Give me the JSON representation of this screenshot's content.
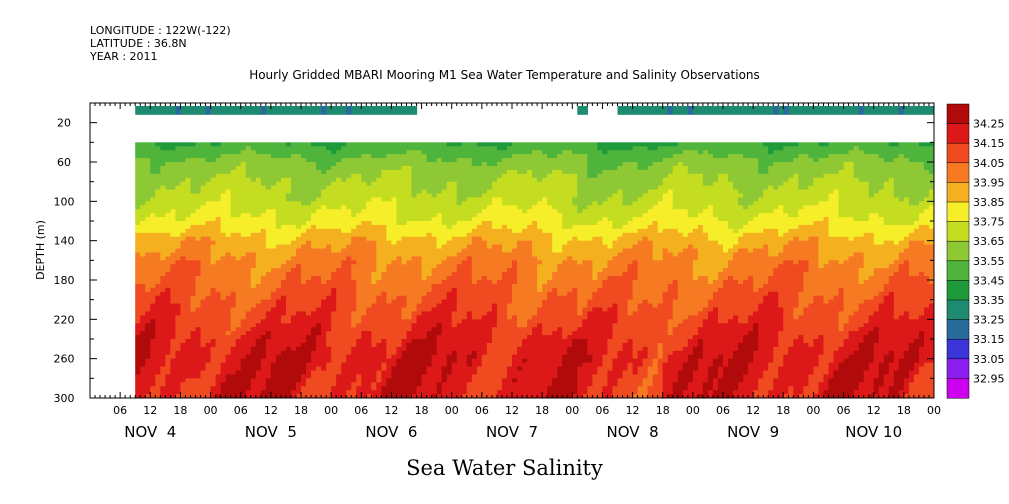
{
  "header": {
    "longitude": "LONGITUDE : 122W(-122)",
    "latitude": "LATITUDE : 36.8N",
    "year": "YEAR : 2011"
  },
  "chart_data": {
    "type": "heatmap",
    "title": "Hourly Gridded MBARI Mooring M1 Sea Water Temperature and Salinity Observations",
    "xlabel": "Sea Water Salinity",
    "ylabel": "DEPTH (m)",
    "x_hour_ticks": [
      "06",
      "12",
      "18",
      "00",
      "06",
      "12",
      "18",
      "00",
      "06",
      "12",
      "18",
      "00",
      "06",
      "12",
      "18",
      "00",
      "06",
      "12",
      "18",
      "00",
      "06",
      "12",
      "18",
      "00",
      "06",
      "12",
      "18",
      "00"
    ],
    "x_day_labels": [
      "NOV  4",
      "NOV  5",
      "NOV  6",
      "NOV  7",
      "NOV  8",
      "NOV  9",
      "NOV 10"
    ],
    "xlim_hours": [
      0,
      168
    ],
    "y_ticks": [
      20,
      60,
      100,
      140,
      180,
      220,
      260,
      300
    ],
    "ylim": [
      300,
      0
    ],
    "color_levels": [
      32.95,
      33.05,
      33.15,
      33.25,
      33.35,
      33.45,
      33.55,
      33.65,
      33.75,
      33.85,
      33.95,
      34.05,
      34.15,
      34.25
    ],
    "colorbar_labels": [
      "34.25",
      "34.15",
      "34.05",
      "33.95",
      "33.85",
      "33.75",
      "33.65",
      "33.55",
      "33.45",
      "33.35",
      "33.25",
      "33.15",
      "33.05",
      "32.95"
    ],
    "colors": [
      "#cc00ee",
      "#8a1fef",
      "#3a35d8",
      "#286a9c",
      "#1e8a70",
      "#1f9a3a",
      "#4eb43c",
      "#8ec834",
      "#c4dd20",
      "#f5ee28",
      "#f5b020",
      "#f57a22",
      "#f04a20",
      "#dc1818",
      "#b00a0a"
    ],
    "data_start_hour": 9,
    "depth_profile": [
      {
        "depth": 10,
        "salinity": 33.38
      },
      {
        "depth": 40,
        "salinity": 33.45
      },
      {
        "depth": 60,
        "salinity": 33.58
      },
      {
        "depth": 80,
        "salinity": 33.65
      },
      {
        "depth": 100,
        "salinity": 33.7
      },
      {
        "depth": 120,
        "salinity": 33.78
      },
      {
        "depth": 140,
        "salinity": 33.9
      },
      {
        "depth": 160,
        "salinity": 33.98
      },
      {
        "depth": 180,
        "salinity": 34.03
      },
      {
        "depth": 200,
        "salinity": 34.08
      },
      {
        "depth": 220,
        "salinity": 34.13
      },
      {
        "depth": 240,
        "salinity": 34.18
      },
      {
        "depth": 260,
        "salinity": 34.22
      },
      {
        "depth": 280,
        "salinity": 34.21
      },
      {
        "depth": 300,
        "salinity": 34.2
      }
    ],
    "surface_gaps_hours": [
      [
        65,
        97
      ],
      [
        99,
        105
      ]
    ]
  }
}
